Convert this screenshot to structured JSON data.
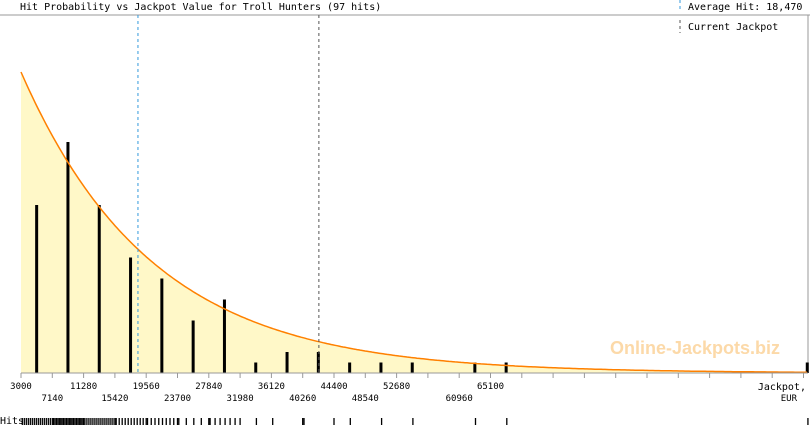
{
  "chart_data": {
    "type": "bar",
    "title": "Hit Probability vs Jackpot Value for Troll Hunters (97 hits)",
    "xlabel": "Jackpot, EUR",
    "xlabel_line1": "Jackpot,",
    "xlabel_line2": "EUR",
    "xlim": [
      3000,
      108000
    ],
    "x_ticks_top": [
      "3000",
      "11280",
      "19560",
      "27840",
      "36120",
      "44400",
      "52680",
      "65100"
    ],
    "x_ticks_bottom": [
      "7140",
      "15420",
      "23700",
      "31980",
      "40260",
      "48540",
      "60960"
    ],
    "bars_x": [
      5070,
      9210,
      13350,
      17490,
      21630,
      25770,
      29910,
      34050,
      38190,
      42330,
      46470,
      50610,
      54750,
      63030,
      67170,
      107000
    ],
    "bars_hits": [
      16,
      22,
      16,
      11,
      9,
      5,
      7,
      1,
      2,
      2,
      1,
      1,
      1,
      1,
      1,
      1
    ],
    "average_hit": 18470,
    "current_jackpot": 42400,
    "legend": {
      "average_label": "Average Hit: 18,470",
      "current_label": "Current Jackpot"
    },
    "rug_label": "Hits",
    "watermark": "Online-Jackpots.biz",
    "colors": {
      "curve": "#ff8000",
      "fill": "#fff8c8",
      "average": "#3399dd",
      "current": "#555555",
      "bar": "#000000"
    }
  }
}
